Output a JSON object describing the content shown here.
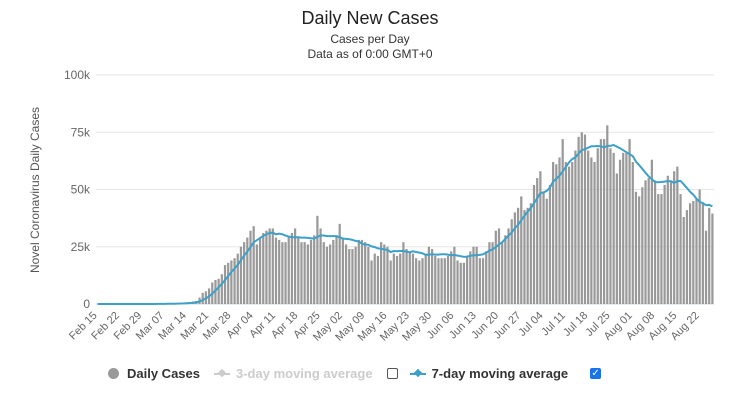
{
  "chart_data": {
    "type": "bar",
    "title": "Daily New Cases",
    "subtitle": "Cases per Day",
    "subtitle2": "Data as of 0:00 GMT+0",
    "ylabel": "Novel Coronavirus Daily Cases",
    "ylim": [
      0,
      100000
    ],
    "yticks": [
      "0",
      "25k",
      "50k",
      "75k",
      "100k"
    ],
    "ytick_values": [
      0,
      25000,
      50000,
      75000,
      100000
    ],
    "grid": true,
    "x_start": "2020-02-15",
    "xtick_labels": [
      "Feb 15",
      "Feb 22",
      "Feb 29",
      "Mar 07",
      "Mar 14",
      "Mar 21",
      "Mar 28",
      "Apr 04",
      "Apr 11",
      "Apr 18",
      "Apr 25",
      "May 02",
      "May 09",
      "May 16",
      "May 23",
      "May 30",
      "Jun 06",
      "Jun 13",
      "Jun 20",
      "Jun 27",
      "Jul 04",
      "Jul 11",
      "Jul 18",
      "Jul 25",
      "Aug 01",
      "Aug 08",
      "Aug 15",
      "Aug 22"
    ],
    "series": [
      {
        "name": "Daily Cases",
        "type": "bar",
        "color": "#999999",
        "values": [
          0,
          0,
          0,
          0,
          0,
          0,
          0,
          0,
          0,
          0,
          0,
          0,
          0,
          0,
          0,
          20,
          20,
          30,
          40,
          60,
          110,
          130,
          120,
          180,
          270,
          300,
          430,
          550,
          700,
          750,
          1100,
          1300,
          2800,
          4900,
          5500,
          6800,
          9400,
          10500,
          11000,
          13000,
          17000,
          18000,
          19000,
          20000,
          22000,
          25000,
          27000,
          29000,
          32000,
          34000,
          26000,
          29000,
          31000,
          32000,
          33000,
          33000,
          29000,
          28000,
          27000,
          27000,
          29000,
          31000,
          33000,
          29000,
          27000,
          27000,
          26000,
          28000,
          30000,
          38500,
          33000,
          27000,
          25000,
          26000,
          28000,
          30000,
          35000,
          29000,
          26000,
          24000,
          24000,
          25000,
          28000,
          28000,
          27000,
          25000,
          19000,
          22000,
          21000,
          27000,
          26000,
          25000,
          19000,
          22000,
          21000,
          22000,
          27000,
          24000,
          23000,
          22000,
          20000,
          19000,
          20000,
          22000,
          25000,
          24000,
          21000,
          20000,
          20000,
          20000,
          21000,
          23000,
          25000,
          19000,
          18000,
          18000,
          21000,
          23000,
          25000,
          25000,
          20000,
          20000,
          23000,
          27000,
          27000,
          32000,
          33000,
          27000,
          30000,
          33000,
          37000,
          40000,
          42000,
          47000,
          41000,
          42000,
          44000,
          52000,
          55000,
          58000,
          49000,
          46000,
          52000,
          62000,
          61000,
          64000,
          72000,
          62000,
          60000,
          62000,
          67000,
          73000,
          75000,
          74000,
          67000,
          64000,
          62000,
          68000,
          72000,
          72000,
          78000,
          68000,
          66000,
          57000,
          63000,
          66000,
          66000,
          72000,
          62000,
          49000,
          47000,
          51000,
          54000,
          55000,
          63000,
          54000,
          48000,
          48000,
          52000,
          56000,
          54000,
          58000,
          60000,
          48000,
          38000,
          41000,
          44000,
          45000,
          46000,
          50000,
          44000,
          32000,
          42000,
          39500
        ]
      },
      {
        "name": "3-day moving average",
        "type": "line",
        "visible": false,
        "color": "#cccccc"
      },
      {
        "name": "7-day moving average",
        "type": "line",
        "visible": true,
        "color": "#3ca0c8",
        "window": 7
      }
    ],
    "legend": "bottom"
  }
}
